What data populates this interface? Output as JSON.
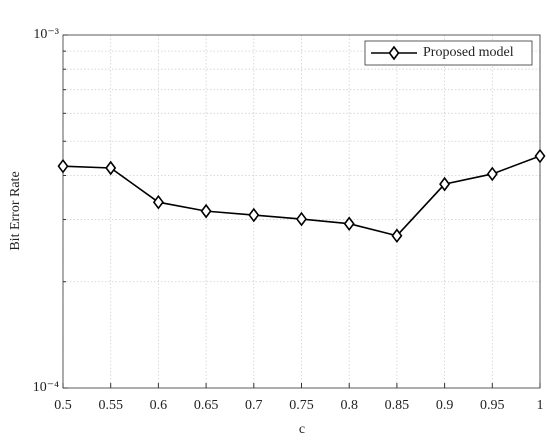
{
  "chart_data": {
    "type": "line",
    "x": [
      0.5,
      0.55,
      0.6,
      0.65,
      0.7,
      0.75,
      0.8,
      0.85,
      0.9,
      0.95,
      1
    ],
    "series": [
      {
        "name": "Proposed model",
        "color": "#000000",
        "marker": "diamond",
        "values": [
          0.000425,
          0.00042,
          0.000336,
          0.000317,
          0.000309,
          0.000301,
          0.000292,
          0.00027,
          0.000378,
          0.000404,
          0.000454
        ]
      }
    ],
    "xlabel": "c",
    "ylabel": "Bit Error Rate",
    "xlim": [
      0.5,
      1
    ],
    "xticks": [
      0.5,
      0.55,
      0.6,
      0.65,
      0.7,
      0.75,
      0.8,
      0.85,
      0.9,
      0.95,
      1
    ],
    "ylim": [
      0.0001,
      0.001
    ],
    "yscale": "log",
    "yticks": [
      {
        "value": 0.0001,
        "label": "10⁻⁴"
      },
      {
        "value": 0.001,
        "label": "10⁻³"
      }
    ],
    "yminorticks": [
      0.0002,
      0.0003,
      0.0004,
      0.0005,
      0.0006,
      0.0007,
      0.0008,
      0.0009
    ],
    "grid": true,
    "legend": "upper right"
  }
}
